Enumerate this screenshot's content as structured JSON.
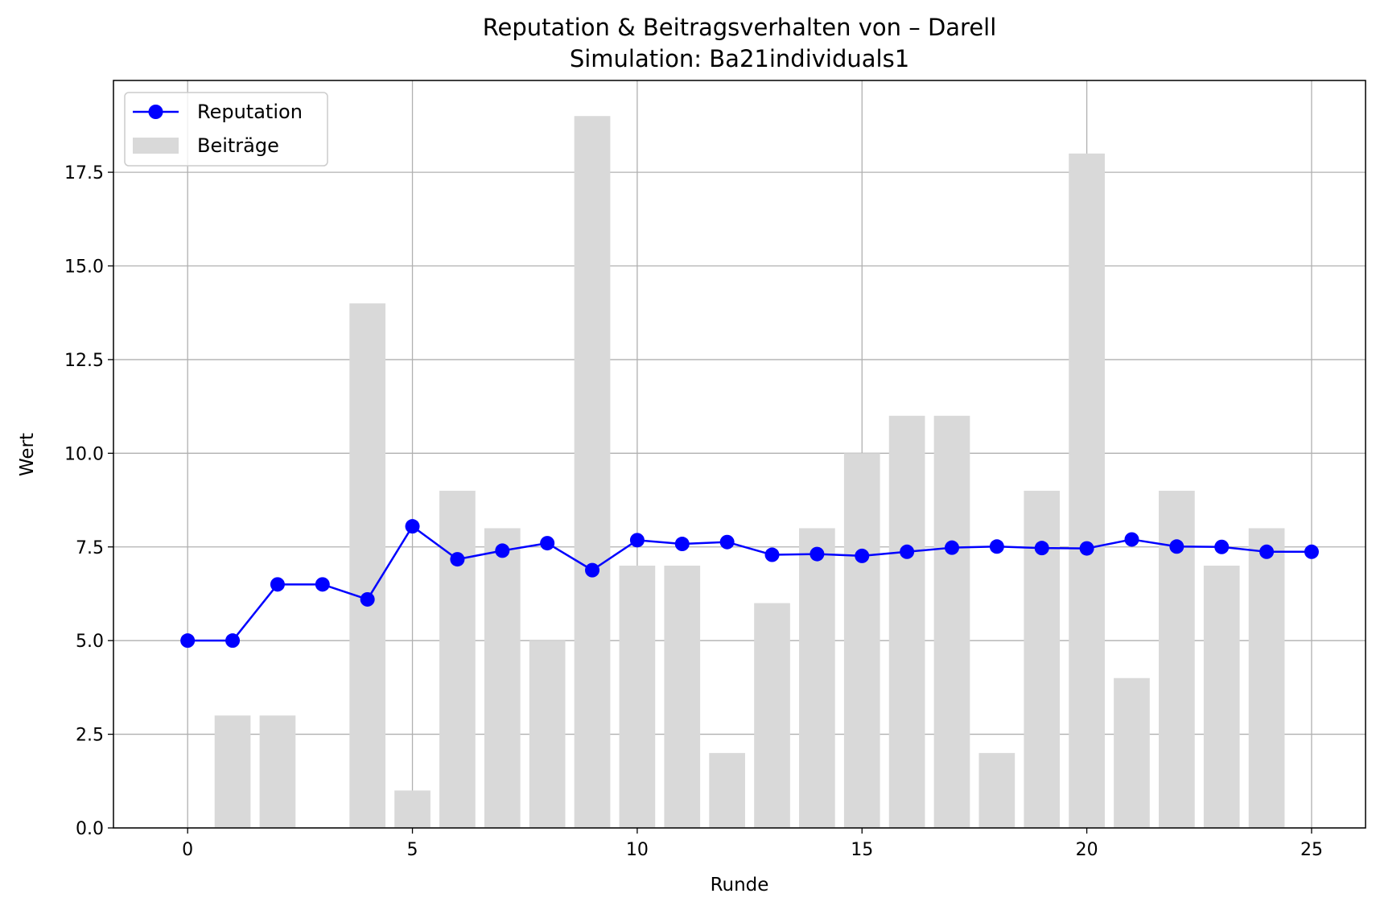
{
  "chart_data": {
    "type": "bar+line",
    "title": "Reputation & Beitragsverhalten von – Darell",
    "subtitle": "Simulation: Ba21individuals1",
    "xlabel": "Runde",
    "ylabel": "Wert",
    "xlim": [
      -1.65,
      26.2
    ],
    "ylim": [
      0,
      19.95
    ],
    "xticks": [
      0,
      5,
      10,
      15,
      20,
      25
    ],
    "xtick_labels": [
      "0",
      "5",
      "10",
      "15",
      "20",
      "25"
    ],
    "yticks": [
      0,
      2.5,
      5,
      7.5,
      10,
      12.5,
      15,
      17.5
    ],
    "ytick_labels": [
      "0.0",
      "2.5",
      "5.0",
      "7.5",
      "10.0",
      "12.5",
      "15.0",
      "17.5"
    ],
    "grid": true,
    "legend_position": "top-left",
    "legend": [
      "Reputation",
      "Beiträge"
    ],
    "series": [
      {
        "name": "Reputation",
        "type": "line",
        "color": "#0000ff",
        "marker": "circle",
        "x": [
          0,
          1,
          2,
          3,
          4,
          5,
          6,
          7,
          8,
          9,
          10,
          11,
          12,
          13,
          14,
          15,
          16,
          17,
          18,
          19,
          20,
          21,
          22,
          23,
          24,
          25
        ],
        "values": [
          5.0,
          5.0,
          6.5,
          6.5,
          6.1,
          8.05,
          7.17,
          7.4,
          7.6,
          6.88,
          7.68,
          7.58,
          7.63,
          7.29,
          7.31,
          7.26,
          7.37,
          7.48,
          7.51,
          7.47,
          7.46,
          7.7,
          7.51,
          7.5,
          7.37,
          7.37
        ]
      },
      {
        "name": "Beiträge",
        "type": "bar",
        "color": "#d9d9d9",
        "x": [
          1,
          2,
          4,
          5,
          6,
          7,
          8,
          9,
          10,
          11,
          12,
          13,
          14,
          15,
          16,
          17,
          18,
          19,
          20,
          21,
          22,
          23,
          24
        ],
        "values": [
          3,
          3,
          14,
          1,
          9,
          8,
          5,
          19,
          7,
          7,
          2,
          6,
          8,
          10,
          11,
          11,
          2,
          9,
          18,
          4,
          9,
          7,
          8
        ]
      }
    ]
  }
}
